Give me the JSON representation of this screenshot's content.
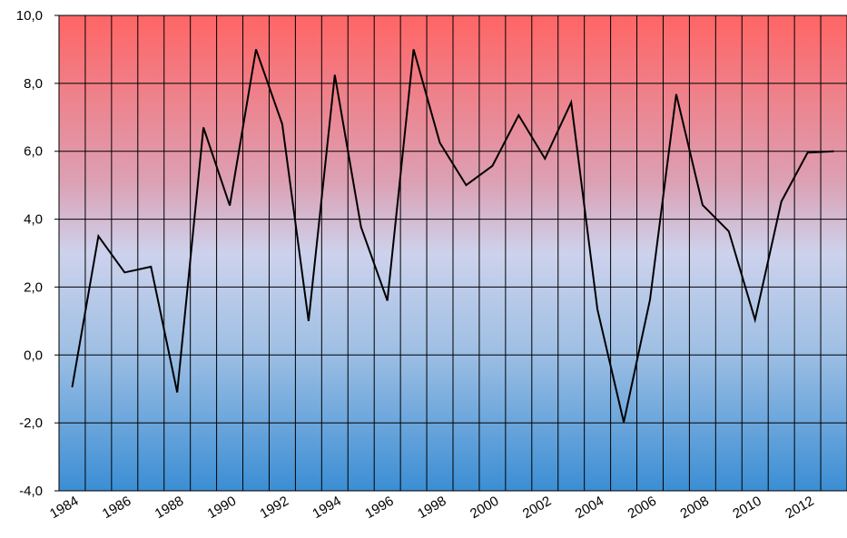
{
  "chart_data": {
    "type": "line",
    "categories": [
      "1984",
      null,
      "1986",
      null,
      "1988",
      null,
      "1990",
      null,
      "1992",
      null,
      "1994",
      null,
      "1996",
      null,
      "1998",
      null,
      "2000",
      null,
      "2002",
      null,
      "2004",
      null,
      "2006",
      null,
      "2008",
      null,
      "2010",
      null,
      "2012",
      null
    ],
    "series": [
      {
        "color": "#000000",
        "values": [
          -0.95,
          3.5,
          2.43,
          2.6,
          -1.1,
          6.7,
          4.4,
          9.0,
          6.8,
          1.0,
          8.25,
          3.77,
          1.6,
          9.0,
          6.25,
          5.0,
          5.57,
          7.06,
          5.78,
          7.44,
          1.34,
          -1.98,
          1.63,
          7.68,
          4.42,
          3.64,
          1.04,
          4.52,
          5.96,
          6.0
        ]
      }
    ],
    "ylim": [
      -4,
      10
    ],
    "yticks": [
      {
        "value": -4,
        "label": "-4,0"
      },
      {
        "value": -2,
        "label": "-2,0"
      },
      {
        "value": 0,
        "label": "0,0"
      },
      {
        "value": 2,
        "label": "2,0"
      },
      {
        "value": 4,
        "label": "4,0"
      },
      {
        "value": 6,
        "label": "6,0"
      },
      {
        "value": 8,
        "label": "8,0"
      },
      {
        "value": 10,
        "label": "10,0"
      }
    ],
    "grid": true
  }
}
